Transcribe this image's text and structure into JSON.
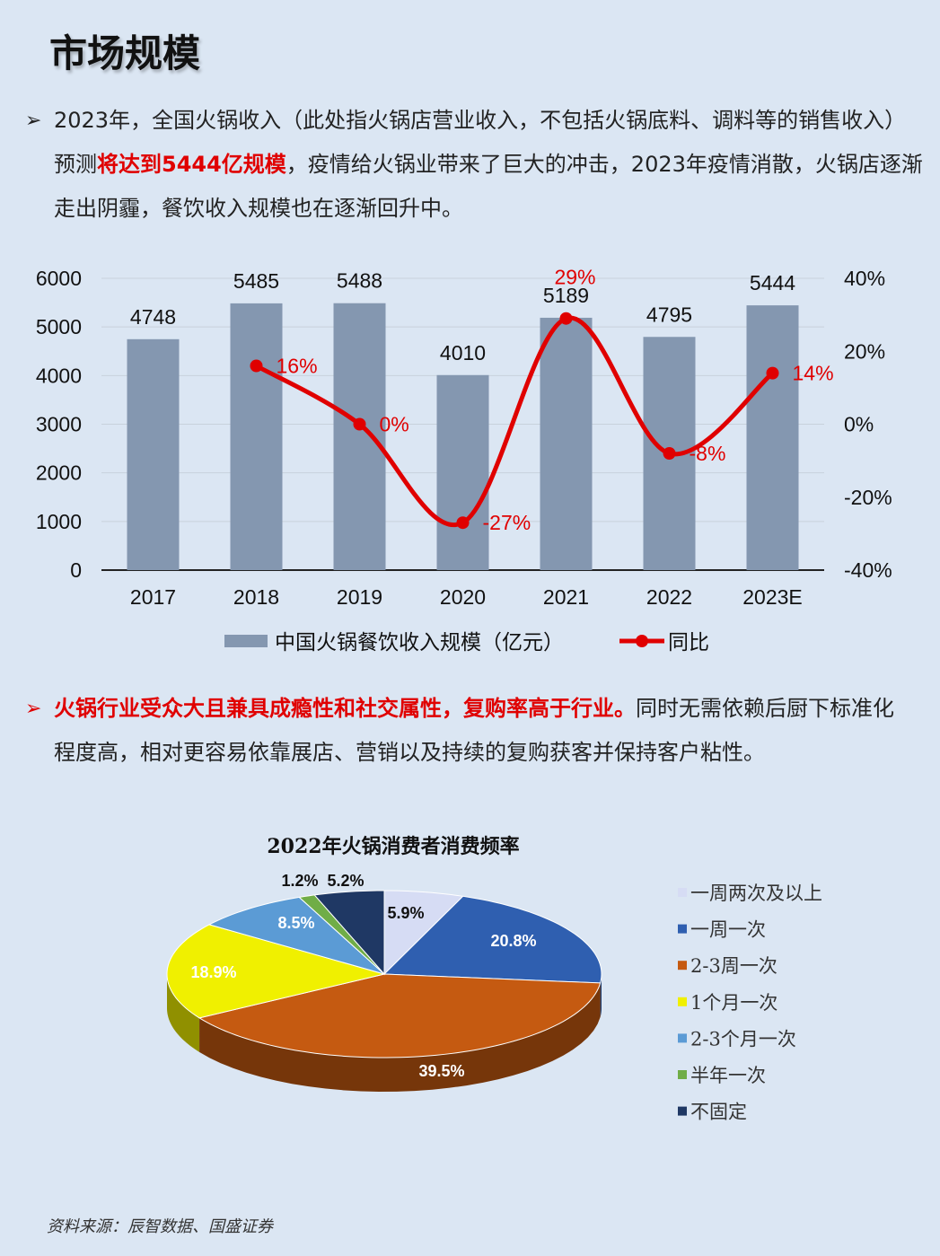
{
  "page": {
    "title": "市场规模",
    "source": "资料来源：辰智数据、国盛证券"
  },
  "paragraph1": {
    "arrow": "➢",
    "before": "2023年，全国火锅收入（此处指火锅店营业收入，不包括火锅底料、调料等的销售收入）预测",
    "highlight": "将达到5444亿规模",
    "after": "，疫情给火锅业带来了巨大的冲击，2023年疫情消散，火锅店逐渐走出阴霾，餐饮收入规模也在逐渐回升中。"
  },
  "paragraph2": {
    "arrow": "➢",
    "highlight": "火锅行业受众大且兼具成瘾性和社交属性，复购率高于行业。",
    "after": "同时无需依赖后厨下标准化程度高，相对更容易依靠展店、营销以及持续的复购获客并保持客户粘性。"
  },
  "chart_data": [
    {
      "type": "bar",
      "categories": [
        "2017",
        "2018",
        "2019",
        "2020",
        "2021",
        "2022",
        "2023E"
      ],
      "series": [
        {
          "name": "中国火锅餐饮收入规模（亿元）",
          "type": "bar",
          "axis": "left",
          "values": [
            4748,
            5485,
            5488,
            4010,
            5189,
            4795,
            5444
          ],
          "color": "#8497b0"
        },
        {
          "name": "同比",
          "type": "line",
          "axis": "right",
          "values": [
            null,
            16,
            0,
            -27,
            29,
            -8,
            14
          ],
          "color": "#e00000"
        }
      ],
      "bar_labels": [
        "4748",
        "5485",
        "5488",
        "4010",
        "5189",
        "4795",
        "5444"
      ],
      "line_labels": [
        "",
        "16%",
        "0%",
        "-27%",
        "29%",
        "-8%",
        "14%"
      ],
      "ylim": [
        0,
        6000
      ],
      "yticks": [
        "0",
        "1000",
        "2000",
        "3000",
        "4000",
        "5000",
        "6000"
      ],
      "y2lim": [
        -40,
        40
      ],
      "y2ticks": [
        "-40%",
        "-20%",
        "0%",
        "20%",
        "40%"
      ],
      "grid": true,
      "legend": "bottom"
    },
    {
      "type": "pie",
      "title": "2022年火锅消费者消费频率",
      "labels": [
        "一周两次及以上",
        "一周一次",
        "2-3周一次",
        "1个月一次",
        "2-3个月一次",
        "半年一次",
        "不固定"
      ],
      "values": [
        5.9,
        20.8,
        39.5,
        18.9,
        8.5,
        1.2,
        5.2
      ],
      "value_labels": [
        "5.9%",
        "20.8%",
        "39.5%",
        "18.9%",
        "8.5%",
        "1.2%",
        "5.2%"
      ],
      "colors": [
        "#d6dcf4",
        "#2f5fb0",
        "#c55a11",
        "#f0f000",
        "#5b9bd5",
        "#70ad47",
        "#1f3864"
      ],
      "legend": "right"
    }
  ]
}
